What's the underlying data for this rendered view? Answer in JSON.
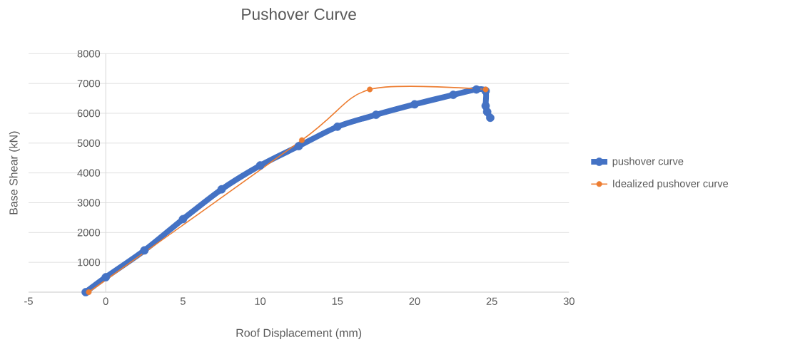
{
  "chart_data": {
    "type": "line",
    "title": "Pushover Curve",
    "xlabel": "Roof Displacement (mm)",
    "ylabel": "Base Shear (kN)",
    "xlim": [
      -5,
      30
    ],
    "xticks": [
      -5,
      0,
      5,
      10,
      15,
      20,
      25,
      30
    ],
    "ylim": [
      0,
      8000
    ],
    "yticks": [
      {
        "value": 0,
        "label": null
      },
      1000,
      2000,
      3000,
      4000,
      5000,
      6000,
      7000,
      8000
    ],
    "grid": "y",
    "legend": "right",
    "marker": "circle",
    "series": [
      {
        "name": "pushover curve",
        "color": "#4472c4",
        "x": [
          -1.3,
          0,
          2.5,
          5,
          7.5,
          10,
          12.5,
          15,
          17.5,
          20,
          22.5,
          24,
          24.6,
          24.6,
          24.7,
          24.9
        ],
        "values": [
          0,
          500,
          1400,
          2450,
          3450,
          4250,
          4900,
          5550,
          5950,
          6300,
          6620,
          6800,
          6750,
          6250,
          6050,
          5850
        ]
      },
      {
        "name": "Idealized pushover curve",
        "color": "#ed7d31",
        "x": [
          -1.1,
          12.7,
          17.1,
          24.6
        ],
        "values": [
          0,
          5100,
          6800,
          6800
        ]
      }
    ]
  }
}
